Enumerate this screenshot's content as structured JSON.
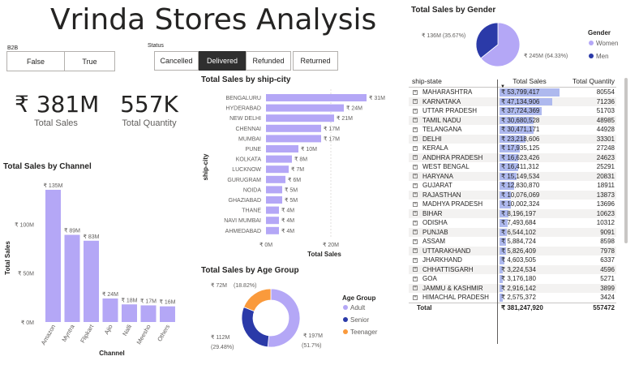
{
  "title": "Vrinda Stores Analysis",
  "b2b_slicer": {
    "label": "B2B",
    "options": [
      "False",
      "True"
    ]
  },
  "status_slicer": {
    "label": "Status",
    "options": [
      "Cancelled",
      "Delivered",
      "Refunded",
      "Returned"
    ],
    "selected": "Delivered"
  },
  "kpis": {
    "sales_value": "₹ 381M",
    "sales_label": "Total Sales",
    "qty_value": "557K",
    "qty_label": "Total Quantity"
  },
  "colors": {
    "bar": "#b4a7f6",
    "women": "#b4a7f6",
    "men": "#2b3aa8",
    "adult": "#b4a7f6",
    "senior": "#2b3aa8",
    "teenager": "#fa9a3c",
    "table_bar": "#aeb9ee"
  },
  "chart_data": [
    {
      "id": "channel",
      "type": "bar",
      "title": "Total Sales by Channel",
      "xlabel": "Channel",
      "ylabel": "Total Sales",
      "categories": [
        "Amazon",
        "Myntra",
        "Flipkart",
        "Ajio",
        "Nalli",
        "Meesho",
        "Others"
      ],
      "values": [
        135,
        89,
        83,
        24,
        18,
        17,
        16
      ],
      "data_labels": [
        "₹ 135M",
        "₹ 89M",
        "₹ 83M",
        "₹ 24M",
        "₹ 18M",
        "₹ 17M",
        "₹ 16M"
      ],
      "yticks": [
        "₹ 0M",
        "₹ 50M",
        "₹ 100M"
      ],
      "ylim": [
        0,
        135
      ]
    },
    {
      "id": "city",
      "type": "bar",
      "orientation": "horizontal",
      "title": "Total Sales by ship-city",
      "xlabel": "Total Sales",
      "ylabel": "ship-city",
      "categories": [
        "BENGALURU",
        "HYDERABAD",
        "NEW DELHI",
        "CHENNAI",
        "MUMBAI",
        "PUNE",
        "KOLKATA",
        "LUCKNOW",
        "GURUGRAM",
        "NOIDA",
        "GHAZIABAD",
        "THANE",
        "NAVI MUMBAI",
        "AHMEDABAD"
      ],
      "values": [
        31,
        24,
        21,
        17,
        17,
        10,
        8,
        7,
        6,
        5,
        5,
        4,
        4,
        4
      ],
      "data_labels": [
        "₹ 31M",
        "₹ 24M",
        "₹ 21M",
        "₹ 17M",
        "₹ 17M",
        "₹ 10M",
        "₹ 8M",
        "₹ 7M",
        "₹ 6M",
        "₹ 5M",
        "₹ 5M",
        "₹ 4M",
        "₹ 4M",
        "₹ 4M"
      ],
      "xticks": [
        "₹ 0M",
        "₹ 20M"
      ],
      "xlim": [
        0,
        31
      ]
    },
    {
      "id": "gender",
      "type": "pie",
      "title": "Total Sales by Gender",
      "legend_title": "Gender",
      "categories": [
        "Women",
        "Men"
      ],
      "values": [
        245,
        136
      ],
      "data_labels": [
        "₹ 245M (64.33%)",
        "₹ 136M (35.67%)"
      ]
    },
    {
      "id": "age",
      "type": "pie",
      "donut": true,
      "title": "Total Sales by Age Group",
      "legend_title": "Age Group",
      "categories": [
        "Adult",
        "Senior",
        "Teenager"
      ],
      "values": [
        197,
        112,
        72
      ],
      "data_labels": [
        "₹ 197M",
        "₹ 112M",
        "₹ 72M"
      ],
      "data_percents": [
        "(51.7%)",
        "(29.48%)",
        "(18.82%)"
      ]
    }
  ],
  "table": {
    "headers": [
      "ship-state",
      "Total Sales",
      "Total Quantity"
    ],
    "rows": [
      {
        "state": "MAHARASHTRA",
        "sales": "₹ 53,799,417",
        "sales_num": 53799417,
        "qty": "80554"
      },
      {
        "state": "KARNATAKA",
        "sales": "₹ 47,134,906",
        "sales_num": 47134906,
        "qty": "71236"
      },
      {
        "state": "UTTAR PRADESH",
        "sales": "₹ 37,724,369",
        "sales_num": 37724369,
        "qty": "51703"
      },
      {
        "state": "TAMIL NADU",
        "sales": "₹ 30,680,528",
        "sales_num": 30680528,
        "qty": "48985"
      },
      {
        "state": "TELANGANA",
        "sales": "₹ 30,471,171",
        "sales_num": 30471171,
        "qty": "44928"
      },
      {
        "state": "DELHI",
        "sales": "₹ 23,218,606",
        "sales_num": 23218606,
        "qty": "33301"
      },
      {
        "state": "KERALA",
        "sales": "₹ 17,935,125",
        "sales_num": 17935125,
        "qty": "27248"
      },
      {
        "state": "ANDHRA PRADESH",
        "sales": "₹ 16,623,426",
        "sales_num": 16623426,
        "qty": "24623"
      },
      {
        "state": "WEST BENGAL",
        "sales": "₹ 16,411,312",
        "sales_num": 16411312,
        "qty": "25291"
      },
      {
        "state": "HARYANA",
        "sales": "₹ 15,149,534",
        "sales_num": 15149534,
        "qty": "20831"
      },
      {
        "state": "GUJARAT",
        "sales": "₹ 12,830,870",
        "sales_num": 12830870,
        "qty": "18911"
      },
      {
        "state": "RAJASTHAN",
        "sales": "₹ 10,076,069",
        "sales_num": 10076069,
        "qty": "13873"
      },
      {
        "state": "MADHYA PRADESH",
        "sales": "₹ 10,002,324",
        "sales_num": 10002324,
        "qty": "13696"
      },
      {
        "state": "BIHAR",
        "sales": "₹ 8,196,197",
        "sales_num": 8196197,
        "qty": "10623"
      },
      {
        "state": "ODISHA",
        "sales": "₹ 7,493,684",
        "sales_num": 7493684,
        "qty": "10312"
      },
      {
        "state": "PUNJAB",
        "sales": "₹ 6,544,102",
        "sales_num": 6544102,
        "qty": "9091"
      },
      {
        "state": "ASSAM",
        "sales": "₹ 5,884,724",
        "sales_num": 5884724,
        "qty": "8598"
      },
      {
        "state": "UTTARAKHAND",
        "sales": "₹ 5,826,409",
        "sales_num": 5826409,
        "qty": "7978"
      },
      {
        "state": "JHARKHAND",
        "sales": "₹ 4,603,505",
        "sales_num": 4603505,
        "qty": "6337"
      },
      {
        "state": "CHHATTISGARH",
        "sales": "₹ 3,224,534",
        "sales_num": 3224534,
        "qty": "4596"
      },
      {
        "state": "GOA",
        "sales": "₹ 3,176,180",
        "sales_num": 3176180,
        "qty": "5271"
      },
      {
        "state": "JAMMU & KASHMIR",
        "sales": "₹ 2,916,142",
        "sales_num": 2916142,
        "qty": "3899"
      },
      {
        "state": "HIMACHAL PRADESH",
        "sales": "₹ 2,575,372",
        "sales_num": 2575372,
        "qty": "3424"
      }
    ],
    "total": {
      "label": "Total",
      "sales": "₹ 381,247,920",
      "qty": "557472"
    }
  }
}
